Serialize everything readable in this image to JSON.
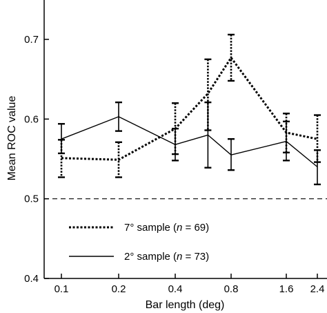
{
  "chart_data": {
    "type": "line",
    "title": "",
    "xlabel": "Bar length (deg)",
    "ylabel": "Mean ROC value",
    "x_scale": "log",
    "x": [
      0.1,
      0.2,
      0.4,
      0.6,
      0.8,
      1.6,
      2.4
    ],
    "x_tick_labels": [
      "0.1",
      "0.2",
      "0.4",
      "0.8",
      "1.6",
      "2.4"
    ],
    "x_tick_values": [
      0.1,
      0.2,
      0.4,
      0.8,
      1.6,
      2.4
    ],
    "y_ticks": [
      0.4,
      0.5,
      0.6,
      0.7
    ],
    "y_tick_labels": [
      "0.4",
      "0.5",
      "0.6",
      "0.7"
    ],
    "ylim": [
      0.4,
      0.75
    ],
    "xlim": [
      0.075,
      2.6
    ],
    "reference_line": {
      "y": 0.5,
      "style": "dashed"
    },
    "legend_position": "lower-left",
    "series": [
      {
        "name_parts": [
          "7° sample (",
          "n",
          " = 69)"
        ],
        "style": "dotted",
        "color": "#000000",
        "values": [
          0.551,
          0.549,
          0.588,
          0.632,
          0.677,
          0.583,
          0.575
        ],
        "err_low": [
          0.527,
          0.527,
          0.556,
          0.586,
          0.648,
          0.558,
          0.546
        ],
        "err_high": [
          0.574,
          0.571,
          0.62,
          0.675,
          0.706,
          0.607,
          0.605
        ]
      },
      {
        "name_parts": [
          "2° sample (",
          "n",
          " = 73)"
        ],
        "style": "solid",
        "color": "#000000",
        "values": [
          0.575,
          0.603,
          0.568,
          0.58,
          0.555,
          0.572,
          0.54
        ],
        "err_low": [
          0.557,
          0.585,
          0.548,
          0.539,
          0.536,
          0.548,
          0.518
        ],
        "err_high": [
          0.594,
          0.621,
          0.588,
          0.621,
          0.575,
          0.597,
          0.561
        ]
      }
    ]
  }
}
